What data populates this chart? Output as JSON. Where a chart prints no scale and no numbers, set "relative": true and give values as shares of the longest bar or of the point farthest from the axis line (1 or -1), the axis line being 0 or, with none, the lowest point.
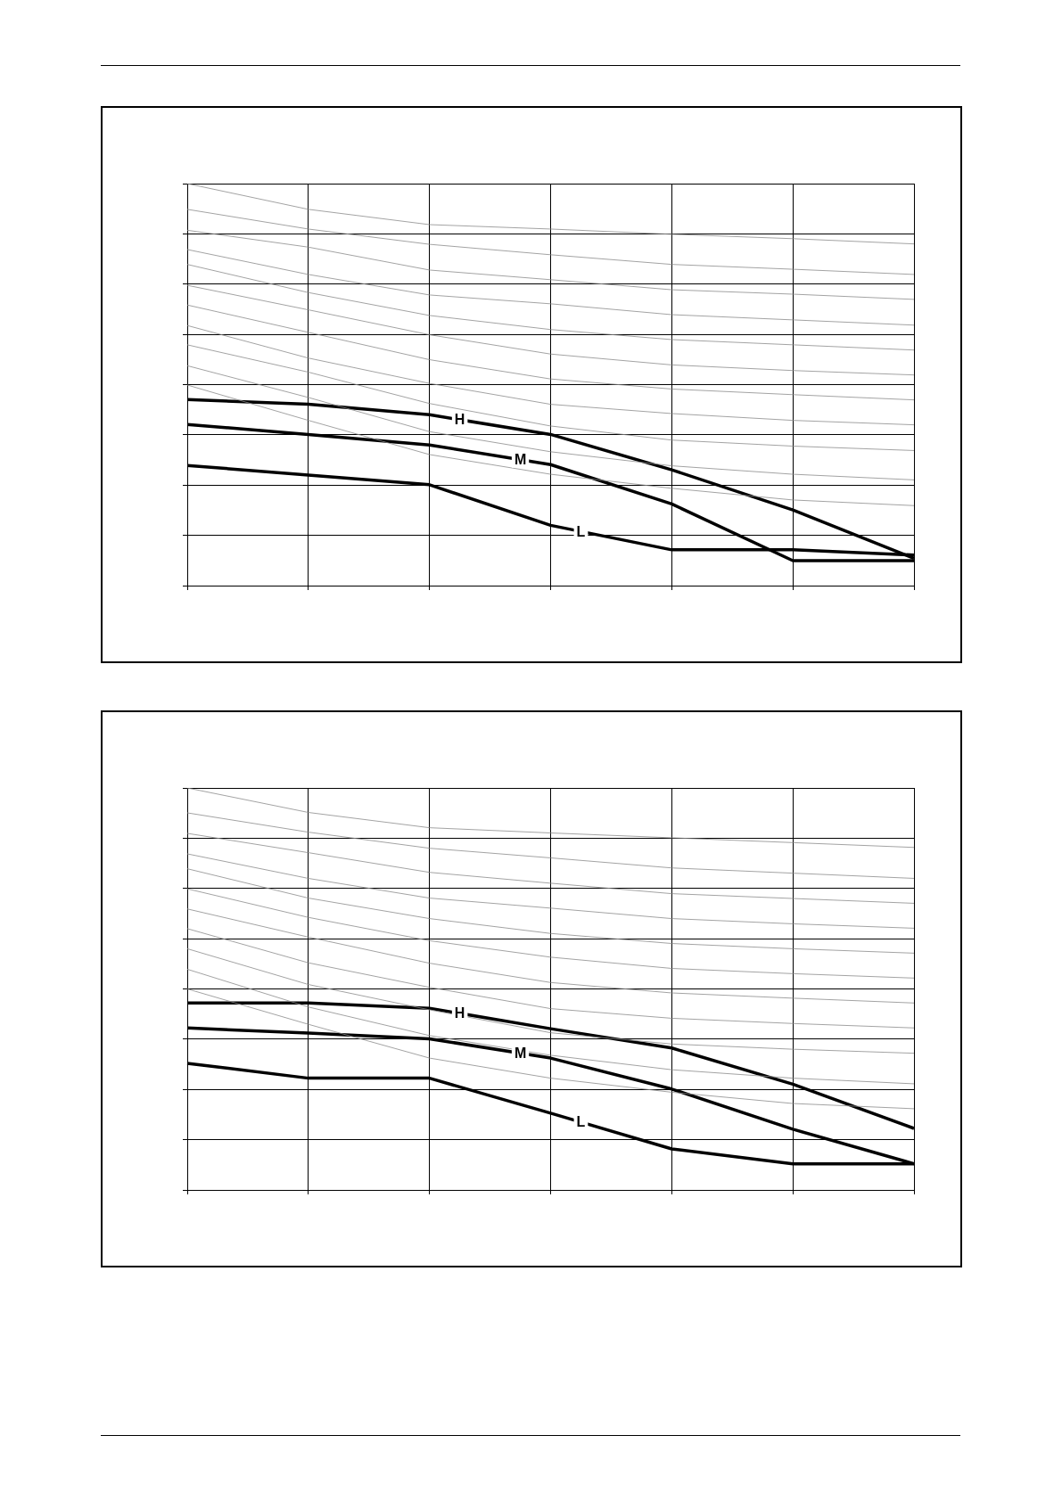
{
  "chart_data": [
    {
      "type": "line",
      "categories": [
        null,
        null,
        null,
        null,
        null,
        null,
        null
      ],
      "relative": true,
      "grid": true,
      "marker": "none",
      "series": [
        {
          "color": "#8c8c8c",
          "values": [
            1.0,
            0.936,
            0.898,
            0.887,
            0.874,
            0.863,
            0.85
          ]
        },
        {
          "color": "#8c8c8c",
          "values": [
            0.936,
            0.887,
            0.849,
            0.823,
            0.799,
            0.787,
            0.774
          ]
        },
        {
          "color": "#8c8c8c",
          "values": [
            0.884,
            0.842,
            0.785,
            0.761,
            0.736,
            0.725,
            0.712
          ]
        },
        {
          "color": "#8c8c8c",
          "values": [
            0.836,
            0.774,
            0.723,
            0.701,
            0.674,
            0.661,
            0.648
          ]
        },
        {
          "color": "#8c8c8c",
          "values": [
            0.799,
            0.729,
            0.672,
            0.637,
            0.612,
            0.599,
            0.586
          ]
        },
        {
          "color": "#8c8c8c",
          "values": [
            0.747,
            0.686,
            0.624,
            0.576,
            0.549,
            0.535,
            0.524
          ]
        },
        {
          "color": "#8c8c8c",
          "values": [
            0.698,
            0.63,
            0.562,
            0.514,
            0.489,
            0.475,
            0.462
          ]
        },
        {
          "color": "#8c8c8c",
          "values": [
            0.647,
            0.566,
            0.503,
            0.451,
            0.428,
            0.411,
            0.4
          ]
        },
        {
          "color": "#8c8c8c",
          "values": [
            0.599,
            0.531,
            0.453,
            0.397,
            0.362,
            0.347,
            0.336
          ]
        },
        {
          "color": "#8c8c8c",
          "values": [
            0.547,
            0.468,
            0.383,
            0.333,
            0.298,
            0.277,
            0.263
          ]
        },
        {
          "color": "#8c8c8c",
          "values": [
            0.499,
            0.411,
            0.326,
            0.277,
            0.242,
            0.213,
            0.199
          ]
        },
        {
          "name": "H",
          "color": "#000000",
          "values": [
            0.463,
            0.451,
            0.425,
            0.376,
            0.288,
            0.188,
            0.068
          ]
        },
        {
          "name": "M",
          "color": "#000000",
          "values": [
            0.401,
            0.376,
            0.35,
            0.301,
            0.203,
            0.062,
            0.062
          ]
        },
        {
          "name": "L",
          "color": "#000000",
          "values": [
            0.299,
            0.275,
            0.251,
            0.15,
            0.089,
            0.089,
            0.076
          ]
        }
      ]
    },
    {
      "type": "line",
      "categories": [
        null,
        null,
        null,
        null,
        null,
        null,
        null
      ],
      "relative": true,
      "grid": true,
      "marker": "none",
      "series": [
        {
          "color": "#8c8c8c",
          "values": [
            1.0,
            0.939,
            0.901,
            0.888,
            0.876,
            0.864,
            0.852
          ]
        },
        {
          "color": "#8c8c8c",
          "values": [
            0.938,
            0.89,
            0.85,
            0.826,
            0.801,
            0.788,
            0.775
          ]
        },
        {
          "color": "#8c8c8c",
          "values": [
            0.887,
            0.839,
            0.79,
            0.763,
            0.737,
            0.725,
            0.713
          ]
        },
        {
          "color": "#8c8c8c",
          "values": [
            0.836,
            0.775,
            0.726,
            0.701,
            0.675,
            0.662,
            0.651
          ]
        },
        {
          "color": "#8c8c8c",
          "values": [
            0.799,
            0.726,
            0.675,
            0.638,
            0.613,
            0.6,
            0.589
          ]
        },
        {
          "color": "#8c8c8c",
          "values": [
            0.749,
            0.678,
            0.62,
            0.579,
            0.551,
            0.538,
            0.527
          ]
        },
        {
          "color": "#8c8c8c",
          "values": [
            0.699,
            0.629,
            0.564,
            0.516,
            0.49,
            0.477,
            0.465
          ]
        },
        {
          "color": "#8c8c8c",
          "values": [
            0.65,
            0.565,
            0.504,
            0.451,
            0.427,
            0.414,
            0.403
          ]
        },
        {
          "color": "#8c8c8c",
          "values": [
            0.6,
            0.511,
            0.448,
            0.391,
            0.363,
            0.35,
            0.34
          ]
        },
        {
          "color": "#8c8c8c",
          "values": [
            0.549,
            0.455,
            0.384,
            0.335,
            0.299,
            0.278,
            0.264
          ]
        },
        {
          "color": "#8c8c8c",
          "values": [
            0.5,
            0.412,
            0.328,
            0.278,
            0.243,
            0.215,
            0.202
          ]
        },
        {
          "name": "H",
          "color": "#000000",
          "values": [
            0.465,
            0.465,
            0.452,
            0.401,
            0.353,
            0.263,
            0.153
          ]
        },
        {
          "name": "M",
          "color": "#000000",
          "values": [
            0.403,
            0.39,
            0.376,
            0.328,
            0.251,
            0.151,
            0.065
          ]
        },
        {
          "name": "L",
          "color": "#000000",
          "values": [
            0.315,
            0.278,
            0.278,
            0.191,
            0.102,
            0.065,
            0.065
          ]
        }
      ]
    }
  ]
}
